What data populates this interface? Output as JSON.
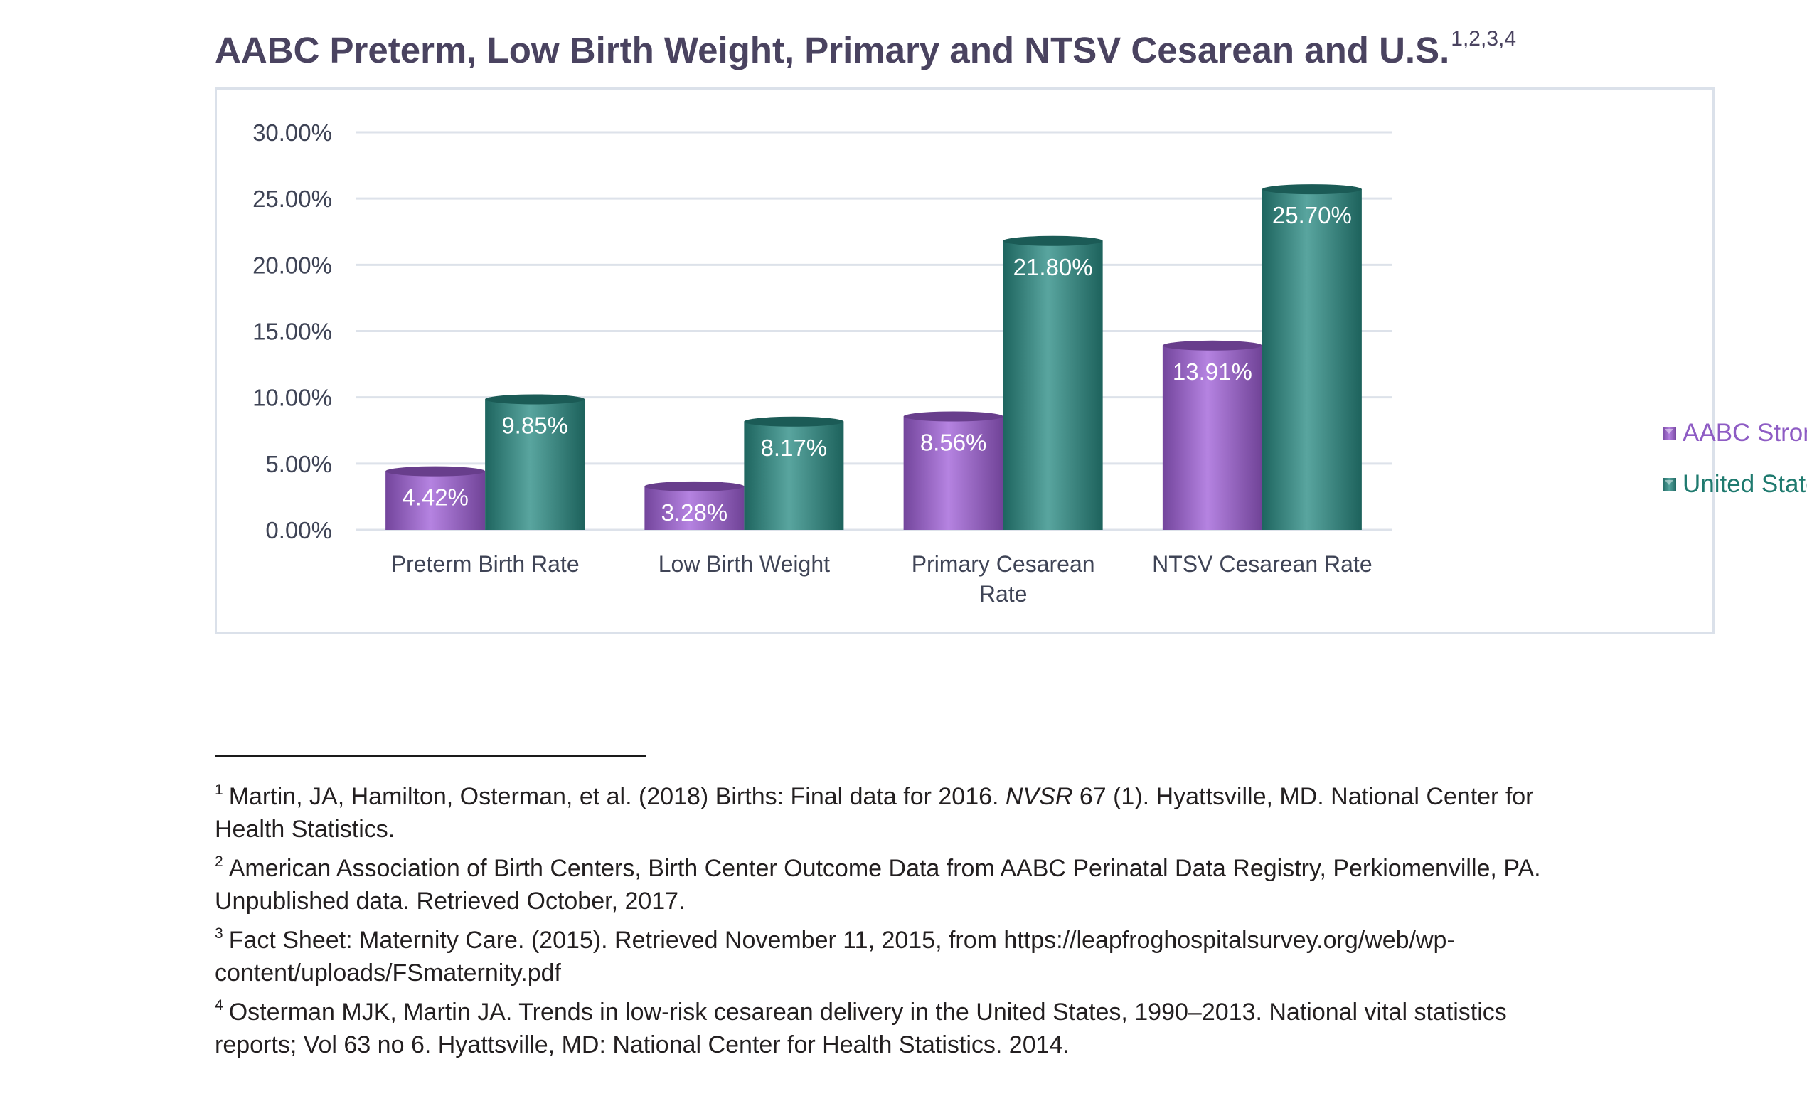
{
  "title": "AABC Preterm, Low Birth Weight, Primary and NTSV Cesarean and U.S.",
  "title_superscript": "1,2,3,4",
  "chart_data": {
    "type": "bar",
    "categories": [
      "Preterm Birth Rate",
      "Low Birth Weight",
      "Primary Cesarean Rate",
      "NTSV Cesarean Rate"
    ],
    "series": [
      {
        "name": "AABC Strong Start",
        "values": [
          4.42,
          3.28,
          8.56,
          13.91
        ],
        "labels": [
          "4.42%",
          "3.28%",
          "8.56%",
          "13.91%"
        ],
        "color": "#a060d8",
        "label_color": "#8e5cc4"
      },
      {
        "name": "United States",
        "values": [
          9.85,
          8.17,
          21.8,
          25.7
        ],
        "labels": [
          "9.85%",
          "8.17%",
          "21.80%",
          "25.70%"
        ],
        "color": "#2a8c84",
        "label_color": "#1f7a6f"
      }
    ],
    "ylim": [
      0,
      30
    ],
    "yticks": [
      "0.00%",
      "5.00%",
      "10.00%",
      "15.00%",
      "20.00%",
      "25.00%",
      "30.00%"
    ],
    "ytick_values": [
      0,
      5,
      10,
      15,
      20,
      25,
      30
    ],
    "xlabel": "",
    "ylabel": "",
    "grid": true,
    "legend_position": "right",
    "bar_style": "3d-cylinder"
  },
  "footnotes": [
    {
      "number": "1",
      "text_before": "Martin, JA, Hamilton, Osterman, et al. (2018) Births:  Final data for 2016.   ",
      "italic": "NVSR",
      "text_after": " 67 (1).  Hyattsville, MD.  National Center for Health Statistics."
    },
    {
      "number": "2",
      "text_before": "American Association of Birth Centers, Birth Center Outcome Data from AABC Perinatal Data Registry, Perkiomenville, PA. Unpublished data. Retrieved October, 2017.",
      "italic": "",
      "text_after": ""
    },
    {
      "number": "3",
      "text_before": "Fact Sheet: Maternity Care. (2015). Retrieved November 11, 2015, from https://leapfroghospitalsurvey.org/web/wp-content/uploads/FSmaternity.pdf",
      "italic": "",
      "text_after": ""
    },
    {
      "number": "4",
      "text_before": "Osterman MJK, Martin JA. Trends in low-risk cesarean delivery in the United States, 1990–2013. National vital statistics reports; Vol 63 no 6. Hyattsville, MD: National Center for Health Statistics. 2014.",
      "italic": "",
      "text_after": ""
    }
  ]
}
